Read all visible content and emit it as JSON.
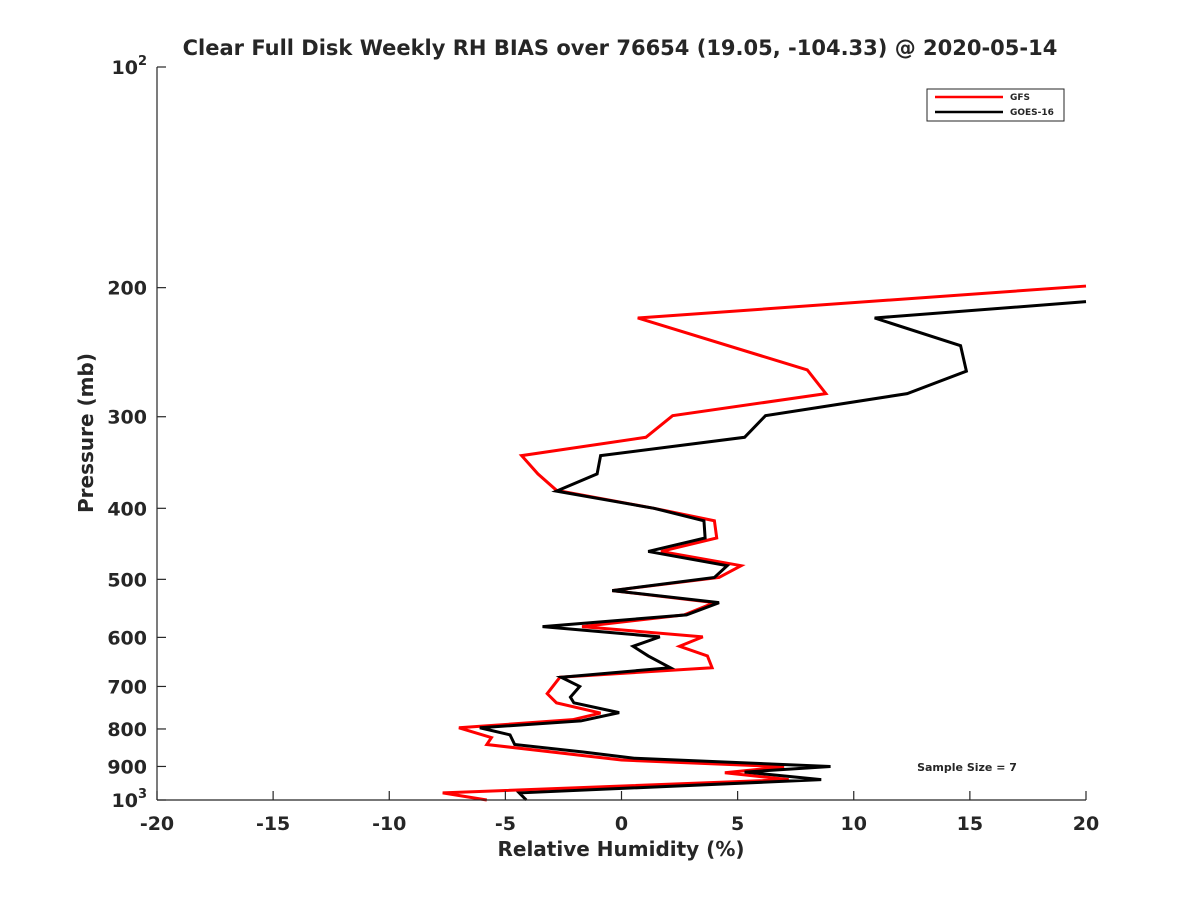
{
  "chart_data": {
    "type": "line",
    "title": "Clear Full Disk Weekly RH BIAS over 76654 (19.05, -104.33) @ 2020-05-14",
    "xlabel": "Relative Humidity (%)",
    "ylabel": "Pressure (mb)",
    "xlim": [
      -20,
      20
    ],
    "ylim": [
      100,
      1000
    ],
    "yscale": "log",
    "yreversed": true,
    "grid": false,
    "x_ticks": [
      "-20",
      "-15",
      "-10",
      "-5",
      "0",
      "5",
      "10",
      "15",
      "20"
    ],
    "x_tick_values": [
      -20,
      -15,
      -10,
      -5,
      0,
      5,
      10,
      15,
      20
    ],
    "y_ticks": [
      {
        "value": 100,
        "base": "10",
        "exp": "2"
      },
      {
        "value": 200,
        "label": "200"
      },
      {
        "value": 300,
        "label": "300"
      },
      {
        "value": 400,
        "label": "400"
      },
      {
        "value": 500,
        "label": "500"
      },
      {
        "value": 600,
        "label": "600"
      },
      {
        "value": 700,
        "label": "700"
      },
      {
        "value": 800,
        "label": "800"
      },
      {
        "value": 900,
        "label": "900"
      },
      {
        "value": 1000,
        "base": "10",
        "exp": "3"
      }
    ],
    "legend_position": "top-right",
    "annotation": "Sample Size = 7",
    "series": [
      {
        "name": "GFS",
        "color": "#ff0000",
        "points": [
          [
            20,
            199
          ],
          [
            0.7,
            220
          ],
          [
            8.0,
            259
          ],
          [
            8.8,
            279
          ],
          [
            2.2,
            299
          ],
          [
            1.05,
            320
          ],
          [
            -4.3,
            339
          ],
          [
            -3.6,
            359
          ],
          [
            -2.8,
            378
          ],
          [
            1.4,
            400
          ],
          [
            4.0,
            416
          ],
          [
            4.1,
            439
          ],
          [
            1.7,
            458
          ],
          [
            5.15,
            479
          ],
          [
            4.2,
            497
          ],
          [
            -0.4,
            518
          ],
          [
            4.0,
            538
          ],
          [
            2.7,
            559
          ],
          [
            -1.7,
            580
          ],
          [
            3.5,
            599
          ],
          [
            2.5,
            617
          ],
          [
            3.7,
            636
          ],
          [
            3.9,
            660
          ],
          [
            -2.65,
            680
          ],
          [
            -3.2,
            716
          ],
          [
            -2.8,
            737
          ],
          [
            -0.9,
            761
          ],
          [
            -2.1,
            777
          ],
          [
            -7.0,
            797
          ],
          [
            -5.6,
            822
          ],
          [
            -5.8,
            840
          ],
          [
            0.0,
            882
          ],
          [
            7.0,
            901
          ],
          [
            4.45,
            918
          ],
          [
            7.2,
            938
          ],
          [
            -7.7,
            978
          ],
          [
            -5.8,
            1000
          ]
        ]
      },
      {
        "name": "GOES-16",
        "color": "#000000",
        "points": [
          [
            20,
            209
          ],
          [
            10.9,
            220
          ],
          [
            14.6,
            240
          ],
          [
            14.85,
            260
          ],
          [
            12.3,
            279
          ],
          [
            6.2,
            299
          ],
          [
            5.3,
            320
          ],
          [
            -0.9,
            339
          ],
          [
            -1.05,
            359
          ],
          [
            -2.8,
            379
          ],
          [
            1.4,
            400
          ],
          [
            3.55,
            416
          ],
          [
            3.6,
            439
          ],
          [
            1.15,
            458
          ],
          [
            4.55,
            479
          ],
          [
            4.0,
            497
          ],
          [
            -0.4,
            518
          ],
          [
            4.2,
            538
          ],
          [
            2.8,
            559
          ],
          [
            -3.4,
            580
          ],
          [
            1.65,
            599
          ],
          [
            0.5,
            617
          ],
          [
            1.15,
            636
          ],
          [
            2.1,
            660
          ],
          [
            -2.6,
            680
          ],
          [
            -1.8,
            700
          ],
          [
            -2.2,
            724
          ],
          [
            -2.05,
            737
          ],
          [
            -0.1,
            760
          ],
          [
            -1.75,
            780
          ],
          [
            -6.1,
            797
          ],
          [
            -4.8,
            815
          ],
          [
            -4.6,
            840
          ],
          [
            -1.65,
            860
          ],
          [
            0.55,
            877
          ],
          [
            9.0,
            900
          ],
          [
            5.3,
            916
          ],
          [
            8.6,
            938
          ],
          [
            -4.4,
            978
          ],
          [
            -4.1,
            1000
          ]
        ]
      }
    ]
  }
}
